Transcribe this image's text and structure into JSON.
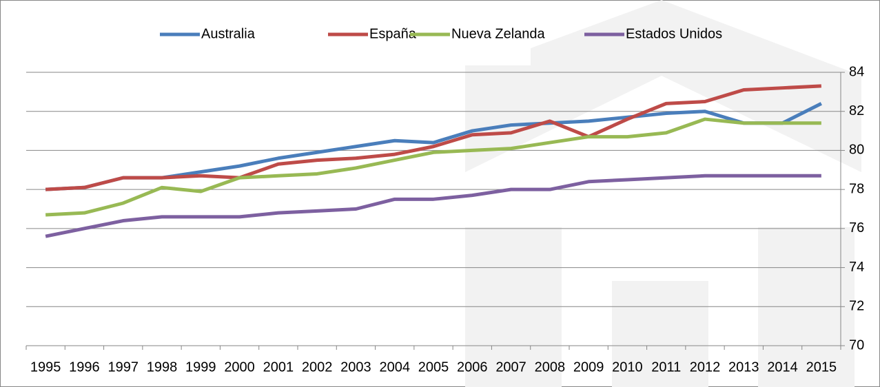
{
  "chart_data": {
    "type": "line",
    "categories": [
      "1995",
      "1996",
      "1997",
      "1998",
      "1999",
      "2000",
      "2001",
      "2002",
      "2003",
      "2004",
      "2005",
      "2006",
      "2007",
      "2008",
      "2009",
      "2010",
      "2011",
      "2012",
      "2013",
      "2014",
      "2015"
    ],
    "series": [
      {
        "name": "Australia",
        "color": "#4a7ebb",
        "values": [
          78.0,
          78.1,
          78.6,
          78.6,
          78.9,
          79.2,
          79.6,
          79.9,
          80.2,
          80.5,
          80.4,
          81.0,
          81.3,
          81.4,
          81.5,
          81.7,
          81.9,
          82.0,
          81.4,
          81.4,
          82.4
        ]
      },
      {
        "name": "España",
        "color": "#be4b48",
        "values": [
          78.0,
          78.1,
          78.6,
          78.6,
          78.7,
          78.6,
          79.3,
          79.5,
          79.6,
          79.8,
          80.2,
          80.8,
          80.9,
          81.5,
          80.7,
          81.6,
          82.4,
          82.5,
          83.1,
          83.2,
          83.3
        ]
      },
      {
        "name": "Nueva Zelanda",
        "color": "#98b954",
        "values": [
          76.7,
          76.8,
          77.3,
          78.1,
          77.9,
          78.6,
          78.7,
          78.8,
          79.1,
          79.5,
          79.9,
          80.0,
          80.1,
          80.4,
          80.7,
          80.7,
          80.9,
          81.6,
          81.4,
          81.4,
          81.4
        ]
      },
      {
        "name": "Estados Unidos",
        "color": "#7d60a0",
        "values": [
          75.6,
          76.0,
          76.4,
          76.6,
          76.6,
          76.6,
          76.8,
          76.9,
          77.0,
          77.5,
          77.5,
          77.7,
          78.0,
          78.0,
          78.4,
          78.5,
          78.6,
          78.7,
          78.7,
          78.7,
          78.7
        ]
      }
    ],
    "ylim": [
      70,
      84
    ],
    "yticks": [
      70,
      72,
      74,
      76,
      78,
      80,
      82,
      84
    ],
    "grid": true,
    "legend": "top"
  }
}
